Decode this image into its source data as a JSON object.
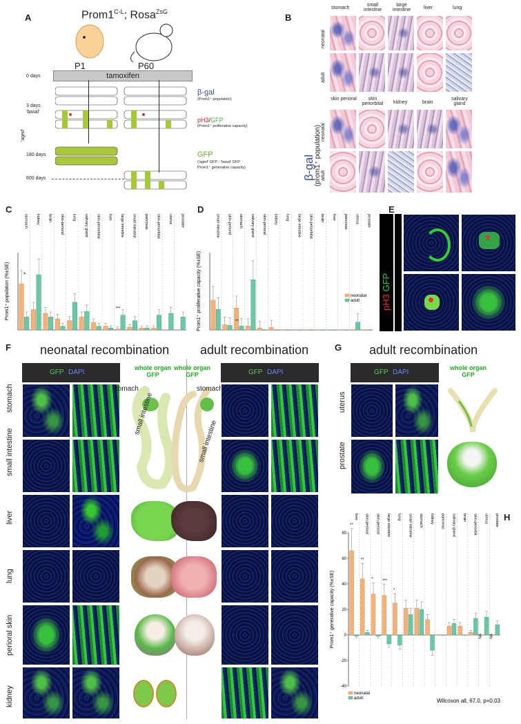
{
  "panels": {
    "A": "A",
    "B": "B",
    "C": "C",
    "D": "D",
    "E": "E",
    "F": "F",
    "G": "G",
    "H": "H"
  },
  "panelA": {
    "title": "Prom1",
    "title_sup": "C-L",
    "title2": "; Rosa",
    "title2_sup": "ZsG",
    "p1": "P1",
    "p60": "P60",
    "day0": "0 days",
    "tamoxifen": "tamoxifen",
    "day3": "3 days",
    "basal": "'basal'",
    "aged": "'aged'",
    "day180": "180 days",
    "day600": "600 days",
    "bgal": "β-gal",
    "bgal_sub": "(Prom1⁺ population)",
    "ph3": "pH3",
    "ph3_sep": "/",
    "gfp": "GFP",
    "ph3_sub": "(Prom1⁺ poliferative capacity)",
    "gfp_big": "GFP",
    "gfp_sub1": "('aged' GFP - 'basal' GFP",
    "gfp_sub2": "Prom1⁺ generative capacity)"
  },
  "panelB": {
    "side_title": "β-gal",
    "side_sub": "(prom1⁺ population)",
    "neonatal": "neonatal",
    "adult": "adult",
    "row1": [
      "stomach",
      "small intestine",
      "large intestine",
      "liver",
      "lung"
    ],
    "row2": [
      "skin perioral",
      "skin periorbital",
      "kidney",
      "brain",
      "salivary gland"
    ]
  },
  "panelC": {
    "ylabel": "Prom1⁺ population (%±SE)",
    "categories": [
      "stomach",
      "kidney",
      "brain",
      "skin-perioral",
      "lung",
      "salivary gland",
      "skin-periorbital",
      "liver",
      "large intestine",
      "small intestine",
      "pancreas",
      "skin-periorbital",
      "uterus",
      "prostate"
    ],
    "annot_star": "*",
    "annot_stars": "***"
  },
  "panelD": {
    "ylabel": "Prom1⁺ proliferative capacity (%±SE)",
    "categories": [
      "small intestine",
      "skin-perioral",
      "stomach",
      "salivary gland",
      "skin-perioral",
      "kidney",
      "lung",
      "large intestine",
      "skin-periorbital",
      "brain",
      "liver",
      "pancreas",
      "uterus",
      "prostate"
    ],
    "annot": "**",
    "legend_neonatal": "neonatal",
    "legend_adult": "adult"
  },
  "panelE": {
    "label_ph3": "pH3",
    "label_gfp": "GFP"
  },
  "panelF": {
    "neonatal_title": "neonatal recombination",
    "adult_title": "adult recombination",
    "gfp": "GFP",
    "dapi": "DAPI",
    "whole_organ": "whole organ",
    "whole_gfp": "GFP",
    "rows": [
      "stomach",
      "small intestine",
      "liver",
      "lung",
      "perioral skin",
      "kidney"
    ],
    "ann_stomach": "stomach",
    "ann_si": "small intestine"
  },
  "panelG": {
    "title": "adult recombination",
    "gfp": "GFP",
    "dapi": "DAPI",
    "whole_organ": "whole organ",
    "whole_gfp": "GFP",
    "rows": [
      "uterus",
      "prostate"
    ]
  },
  "panelH": {
    "ylabel": "Prom1⁺ generative capacity (%±SE)",
    "yticks": [
      "80",
      "60",
      "40",
      "20",
      "0",
      "-20",
      "-40"
    ],
    "categories": [
      "liver",
      "skin-perioral",
      "skin-perioral",
      "large intestine",
      "lung",
      "small intestine",
      "stomach",
      "kidney",
      "pancreas",
      "salivary gland",
      "brain",
      "skin-periorbit",
      "uterus",
      "prostate"
    ],
    "na": "NA",
    "stats": "Wilcoxon all, 67.0, p=0.03",
    "legend_neonatal": "neonatal",
    "legend_adult": "adult",
    "stars": [
      "**",
      "**",
      "*",
      "***",
      "*"
    ]
  },
  "chart_data": [
    {
      "type": "bar",
      "title": "",
      "ylabel": "Prom1⁺ population (%±SE)",
      "categories": [
        "stomach",
        "kidney",
        "brain",
        "skin-perioral",
        "lung",
        "salivary gland",
        "skin-periorbital",
        "liver",
        "large intestine",
        "small intestine",
        "pancreas",
        "skin-periorbital",
        "uterus",
        "prostate"
      ],
      "series": [
        {
          "name": "neonatal",
          "values": [
            25,
            11,
            9,
            6,
            5,
            7,
            4,
            2,
            0.5,
            1.5,
            1,
            1,
            0,
            0
          ]
        },
        {
          "name": "adult",
          "values": [
            7,
            30,
            7,
            2,
            15,
            10,
            2,
            1,
            8,
            5,
            1,
            8,
            9,
            7
          ]
        }
      ],
      "ylim": [
        0,
        42
      ]
    },
    {
      "type": "bar",
      "title": "",
      "ylabel": "Prom1⁺ proliferative capacity (%±SE)",
      "categories": [
        "small intestine",
        "skin-perioral",
        "stomach",
        "salivary gland",
        "skin-perioral",
        "kidney",
        "lung",
        "large intestine",
        "skin-periorbital",
        "brain",
        "liver",
        "pancreas",
        "uterus",
        "prostate"
      ],
      "series": [
        {
          "name": "neonatal",
          "values": [
            4.6,
            0.8,
            3.4,
            0.6,
            0.3,
            0.4,
            0,
            0,
            0,
            0,
            0,
            0,
            0,
            0
          ]
        },
        {
          "name": "adult",
          "values": [
            3.2,
            0.7,
            0.6,
            7.8,
            0,
            0,
            0,
            0,
            0,
            0,
            0,
            0,
            1.2,
            0
          ]
        }
      ],
      "ylim": [
        0,
        12
      ]
    },
    {
      "type": "bar",
      "title": "",
      "ylabel": "Prom1⁺ generative capacity (%±SE)",
      "categories": [
        "liver",
        "skin-perioral",
        "skin-perioral",
        "large intestine",
        "lung",
        "small intestine",
        "stomach",
        "kidney",
        "pancreas",
        "salivary gland",
        "brain",
        "skin-periorbit",
        "uterus",
        "prostate"
      ],
      "series": [
        {
          "name": "neonatal",
          "values": [
            66,
            44,
            32,
            31,
            25,
            21,
            21,
            12,
            0,
            7,
            7,
            2,
            0,
            0
          ]
        },
        {
          "name": "adult",
          "values": [
            -1,
            2,
            -1,
            -7,
            -8,
            16,
            20,
            -12,
            0,
            9,
            0,
            13,
            14,
            8
          ]
        }
      ],
      "ylim": [
        -40,
        80
      ]
    }
  ]
}
